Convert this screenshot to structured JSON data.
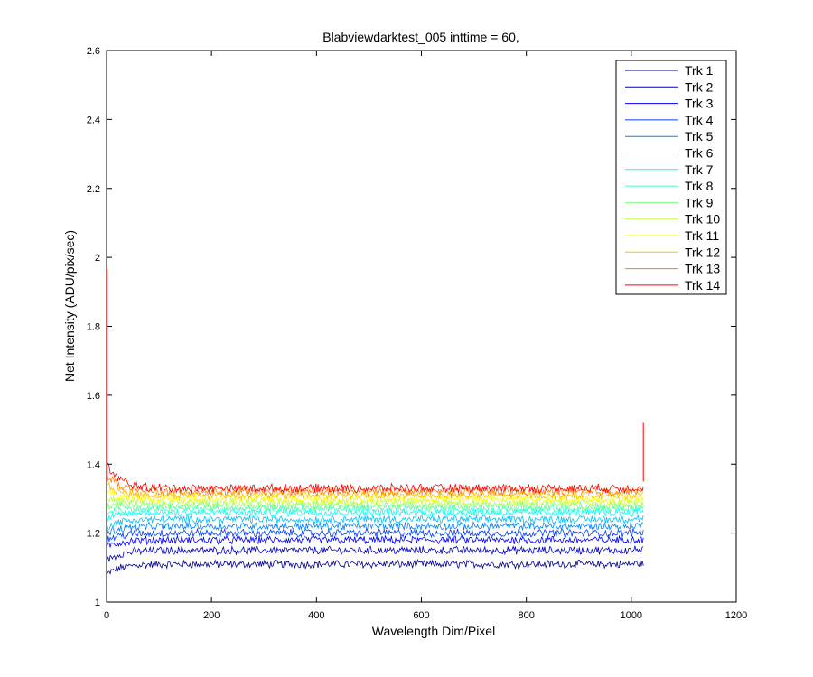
{
  "chart_data": {
    "type": "line",
    "title": "Blabviewdarktest_005 inttime = 60,",
    "xlabel": "Wavelength Dim/Pixel",
    "ylabel": "Net Intensity (ADU/pix/sec)",
    "xlim": [
      0,
      1200
    ],
    "ylim": [
      1,
      2.6
    ],
    "xticks": [
      0,
      200,
      400,
      600,
      800,
      1000,
      1200
    ],
    "xtick_labels": [
      "0",
      "200",
      "400",
      "600",
      "800",
      "1000",
      "1200"
    ],
    "yticks": [
      1,
      1.2,
      1.4,
      1.6,
      1.8,
      2,
      2.2,
      2.4,
      2.6
    ],
    "ytick_labels": [
      "1",
      "1.2",
      "1.4",
      "1.6",
      "1.8",
      "2",
      "2.2",
      "2.4",
      "2.6"
    ],
    "grid": false,
    "legend_position": "top-right",
    "x_range_of_data": [
      1,
      1024
    ],
    "series": [
      {
        "name": "Trk 1",
        "color": "#00008F",
        "start": 1.08,
        "plateau": 1.11,
        "noise": 0.01
      },
      {
        "name": "Trk 2",
        "color": "#0000BF",
        "start": 1.12,
        "plateau": 1.15,
        "noise": 0.01
      },
      {
        "name": "Trk 3",
        "color": "#0000FF",
        "start": 1.16,
        "plateau": 1.18,
        "noise": 0.01
      },
      {
        "name": "Trk 4",
        "color": "#0040FF",
        "start": 1.18,
        "plateau": 1.2,
        "noise": 0.01
      },
      {
        "name": "Trk 5",
        "color": "#0080FF",
        "start": 1.2,
        "plateau": 1.22,
        "noise": 0.01
      },
      {
        "name": "Trk 6",
        "color": "#00BFFF",
        "start": 1.22,
        "plateau": 1.24,
        "noise": 0.01
      },
      {
        "name": "Trk 7",
        "color": "#00FFFF",
        "start": 1.24,
        "plateau": 1.26,
        "noise": 0.01
      },
      {
        "name": "Trk 8",
        "color": "#40FFBF",
        "start": 1.26,
        "plateau": 1.27,
        "noise": 0.01
      },
      {
        "name": "Trk 9",
        "color": "#80FF80",
        "start": 1.28,
        "plateau": 1.28,
        "noise": 0.01
      },
      {
        "name": "Trk 10",
        "color": "#BFFF40",
        "start": 1.3,
        "plateau": 1.29,
        "noise": 0.01
      },
      {
        "name": "Trk 11",
        "color": "#FFFF00",
        "start": 1.32,
        "plateau": 1.3,
        "noise": 0.01
      },
      {
        "name": "Trk 12",
        "color": "#FFBF00",
        "start": 1.34,
        "plateau": 1.31,
        "noise": 0.01
      },
      {
        "name": "Trk 13",
        "color": "#FF8000",
        "start": 1.37,
        "plateau": 1.32,
        "noise": 0.01
      },
      {
        "name": "Trk 14",
        "color": "#FF0000",
        "start": 1.4,
        "plateau": 1.33,
        "noise": 0.011
      }
    ],
    "spikes": [
      {
        "series": "Trk 14",
        "x": 1,
        "y": 1.97
      },
      {
        "series": "Trk 14",
        "x": 1023,
        "y": 1.52
      }
    ]
  }
}
